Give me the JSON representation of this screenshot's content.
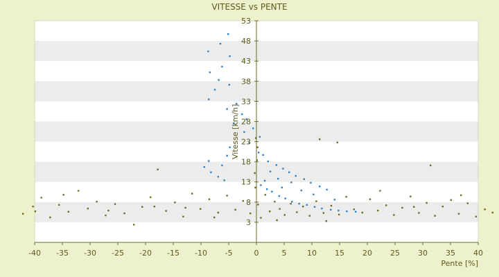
{
  "chart_data": {
    "type": "scatter",
    "title": "VITESSE vs PENTE",
    "xlabel": "Pente [%]",
    "ylabel": "Vitesse [km/h]",
    "xlim": [
      -40,
      40
    ],
    "ylim": [
      -2,
      53
    ],
    "x_ticks": [
      -40,
      -35,
      -30,
      -25,
      -20,
      -15,
      -10,
      -5,
      0,
      5,
      10,
      15,
      20,
      25,
      30,
      35,
      40
    ],
    "y_ticks": [
      3,
      8,
      13,
      18,
      23,
      28,
      33,
      38,
      43,
      48,
      53
    ],
    "grid": "alternating horizontal bands",
    "legend": "none",
    "colors": {
      "background": "#eef2cc",
      "plot_band_light": "#ffffff",
      "plot_band_dark": "#ececec",
      "axis": "#6b6b2a",
      "series_blue": "#2f7fc1",
      "series_olive": "#6e6a1e"
    },
    "series": [
      {
        "color": "#2f7fc1",
        "points": [
          [
            -5.1,
            49.7
          ],
          [
            -6.5,
            47.3
          ],
          [
            -8.7,
            45.4
          ],
          [
            -4.8,
            44.2
          ],
          [
            -6.2,
            41.6
          ],
          [
            -8.4,
            40.2
          ],
          [
            -6.8,
            38.3
          ],
          [
            -4.9,
            37.1
          ],
          [
            -7.5,
            35.9
          ],
          [
            -8.6,
            33.5
          ],
          [
            -3.6,
            32.4
          ],
          [
            -5.3,
            31.1
          ],
          [
            -2.6,
            29.8
          ],
          [
            -1.8,
            28.6
          ],
          [
            -4.1,
            27.5
          ],
          [
            -0.6,
            26.3
          ],
          [
            -2.2,
            25.4
          ],
          [
            0.6,
            24.2
          ],
          [
            -1.3,
            22.7
          ],
          [
            -4.8,
            21.6
          ],
          [
            0.4,
            20.3
          ],
          [
            -5.3,
            19.5
          ],
          [
            -8.6,
            18.2
          ],
          [
            -6.2,
            17.1
          ],
          [
            -9.4,
            16.7
          ],
          [
            -8.2,
            15.4
          ],
          [
            -6.9,
            14.3
          ],
          [
            -5.8,
            13.4
          ],
          [
            0.8,
            12.2
          ],
          [
            1.9,
            11.2
          ],
          [
            2.8,
            10.6
          ],
          [
            4.1,
            9.5
          ],
          [
            5.2,
            8.9
          ],
          [
            6.4,
            8.1
          ],
          [
            7.7,
            7.6
          ],
          [
            9.1,
            7.3
          ],
          [
            10.5,
            6.8
          ],
          [
            11.8,
            6.4
          ],
          [
            13.4,
            6.1
          ],
          [
            14.8,
            5.9
          ],
          [
            16.3,
            5.7
          ],
          [
            17.9,
            5.6
          ],
          [
            1.2,
            19.7
          ],
          [
            2.1,
            18.1
          ],
          [
            3.6,
            17.2
          ],
          [
            4.8,
            16.3
          ],
          [
            5.9,
            15.4
          ],
          [
            7.1,
            14.5
          ],
          [
            8.6,
            13.7
          ],
          [
            9.8,
            12.8
          ],
          [
            11.4,
            11.9
          ],
          [
            12.7,
            11.1
          ],
          [
            6.3,
            12.9
          ],
          [
            8.1,
            10.9
          ],
          [
            10.3,
            9.9
          ],
          [
            14.1,
            8.6
          ],
          [
            3.9,
            13.8
          ],
          [
            4.6,
            11.6
          ],
          [
            2.5,
            15.6
          ],
          [
            1.5,
            13.3
          ]
        ]
      },
      {
        "color": "#6e6a1e",
        "points": [
          [
            -42.1,
            5.1
          ],
          [
            -40.3,
            6.9
          ],
          [
            -38.8,
            9.1
          ],
          [
            -37.2,
            4.2
          ],
          [
            -35.6,
            7.3
          ],
          [
            -33.9,
            5.6
          ],
          [
            -32.1,
            10.8
          ],
          [
            -30.4,
            6.4
          ],
          [
            -28.8,
            8.1
          ],
          [
            -27.2,
            4.7
          ],
          [
            -25.5,
            7.5
          ],
          [
            -23.8,
            5.2
          ],
          [
            -22.1,
            2.4
          ],
          [
            -20.6,
            6.8
          ],
          [
            -19.1,
            9.2
          ],
          [
            -17.8,
            16.1
          ],
          [
            -16.3,
            5.8
          ],
          [
            -14.7,
            7.9
          ],
          [
            -13.2,
            4.4
          ],
          [
            -11.6,
            10.1
          ],
          [
            -10.1,
            6.3
          ],
          [
            -8.5,
            8.7
          ],
          [
            -6.9,
            5.4
          ],
          [
            -5.3,
            9.6
          ],
          [
            -3.8,
            6.1
          ],
          [
            -2.4,
            8.3
          ],
          [
            -1.1,
            5.2
          ],
          [
            -0.2,
            11.6
          ],
          [
            0.3,
            7.4
          ],
          [
            0.8,
            4.1
          ],
          [
            1.6,
            9.8
          ],
          [
            2.4,
            5.7
          ],
          [
            3.3,
            8.1
          ],
          [
            4.2,
            6.3
          ],
          [
            5.1,
            4.8
          ],
          [
            6.2,
            7.6
          ],
          [
            7.3,
            5.5
          ],
          [
            8.4,
            6.9
          ],
          [
            9.6,
            4.6
          ],
          [
            10.8,
            8.2
          ],
          [
            12.1,
            5.3
          ],
          [
            13.5,
            7.1
          ],
          [
            14.9,
            4.9
          ],
          [
            16.2,
            9.3
          ],
          [
            17.6,
            6.2
          ],
          [
            19.1,
            5.4
          ],
          [
            20.5,
            8.7
          ],
          [
            21.9,
            5.9
          ],
          [
            23.4,
            7.2
          ],
          [
            24.8,
            4.8
          ],
          [
            26.3,
            6.6
          ],
          [
            27.8,
            9.4
          ],
          [
            29.3,
            5.3
          ],
          [
            30.7,
            7.8
          ],
          [
            32.2,
            4.6
          ],
          [
            33.6,
            6.9
          ],
          [
            35.1,
            8.5
          ],
          [
            36.5,
            5.1
          ],
          [
            38.1,
            7.7
          ],
          [
            39.6,
            4.4
          ],
          [
            41.2,
            6.2
          ],
          [
            42.6,
            5.4
          ],
          [
            22.3,
            10.8
          ],
          [
            31.4,
            17.1
          ],
          [
            -0.1,
            23.9
          ],
          [
            0.2,
            21.6
          ],
          [
            0.1,
            18.4
          ],
          [
            -0.3,
            15.2
          ],
          [
            11.4,
            23.6
          ],
          [
            14.6,
            22.8
          ],
          [
            -18.4,
            6.9
          ],
          [
            -26.7,
            5.9
          ],
          [
            -34.8,
            9.8
          ],
          [
            -39.9,
            5.7
          ],
          [
            -12.8,
            6.6
          ],
          [
            -7.6,
            4.2
          ],
          [
            3.7,
            3.5
          ],
          [
            12.6,
            3.3
          ],
          [
            28.4,
            6.8
          ],
          [
            36.9,
            9.7
          ]
        ]
      }
    ]
  }
}
